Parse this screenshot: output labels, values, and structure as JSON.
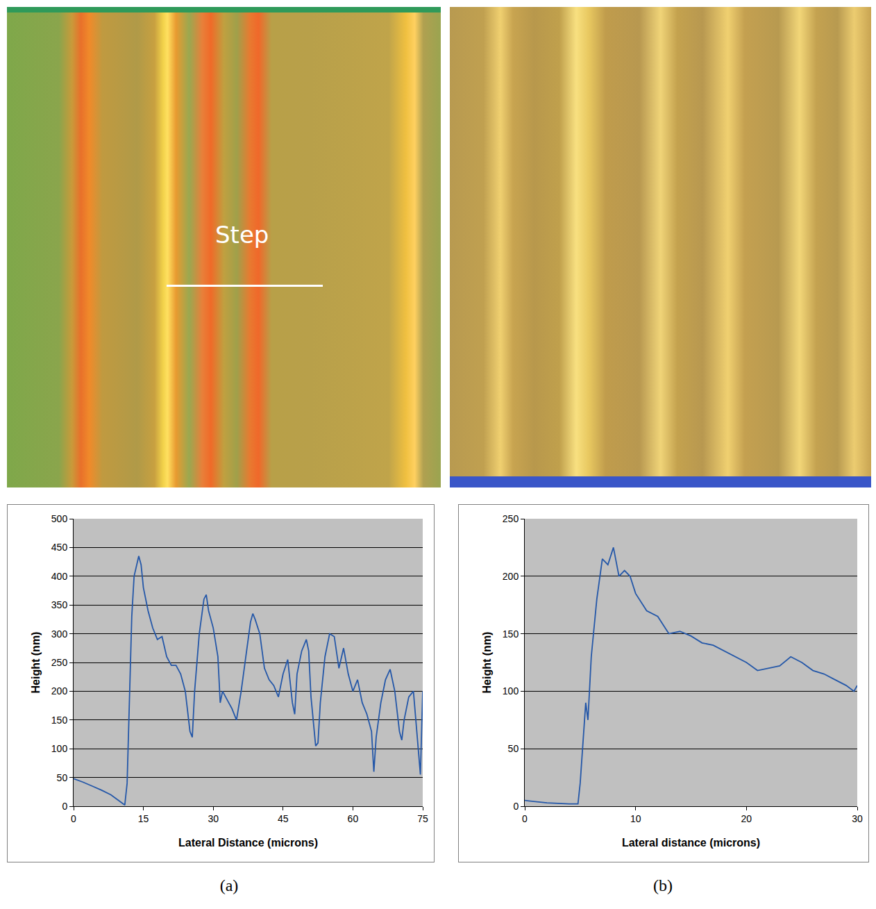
{
  "chart_data": [
    {
      "type": "line",
      "x_label": "Lateral Distance (microns)",
      "y_label": "Height (nm)",
      "x": [
        0,
        2,
        4,
        6,
        8,
        10,
        11,
        11.5,
        12,
        12.5,
        13,
        14,
        14.5,
        15,
        16,
        17,
        18,
        19,
        20,
        21,
        22,
        23,
        24,
        25,
        25.5,
        26,
        27,
        28,
        28.5,
        29,
        30,
        31,
        31.5,
        32,
        33,
        34,
        35,
        36,
        37,
        38,
        38.5,
        39,
        40,
        41,
        42,
        43,
        44,
        45,
        46,
        47,
        47.5,
        48,
        49,
        50,
        50.5,
        51,
        52,
        52.5,
        53,
        54,
        55,
        56,
        57,
        58,
        59,
        60,
        61,
        62,
        63,
        64,
        64.5,
        65,
        66,
        67,
        68,
        69,
        70,
        70.5,
        71,
        72,
        73,
        74,
        74.5,
        75
      ],
      "values": [
        48,
        42,
        35,
        28,
        20,
        8,
        2,
        40,
        200,
        330,
        400,
        435,
        420,
        380,
        340,
        310,
        290,
        295,
        260,
        245,
        245,
        230,
        200,
        130,
        120,
        200,
        300,
        360,
        368,
        340,
        310,
        260,
        180,
        200,
        185,
        170,
        150,
        200,
        260,
        320,
        335,
        325,
        300,
        240,
        220,
        210,
        190,
        230,
        255,
        180,
        160,
        230,
        270,
        290,
        270,
        190,
        105,
        110,
        180,
        260,
        300,
        295,
        240,
        275,
        230,
        200,
        220,
        180,
        160,
        130,
        60,
        120,
        180,
        220,
        238,
        200,
        130,
        115,
        150,
        190,
        200,
        100,
        55,
        200
      ],
      "color": "#2457a8",
      "xlim": [
        0,
        75
      ],
      "xticks": [
        0,
        15,
        30,
        45,
        60,
        75
      ],
      "ylim": [
        0,
        500
      ],
      "yticks": [
        0,
        50,
        100,
        150,
        200,
        250,
        300,
        350,
        400,
        450,
        500
      ],
      "grid": true
    },
    {
      "type": "line",
      "x_label": "Lateral distance (microns)",
      "y_label": "Height (nm)",
      "x": [
        0,
        2,
        4,
        4.8,
        5,
        5.5,
        5.7,
        6,
        6.5,
        7,
        7.5,
        8,
        8.5,
        9,
        9.5,
        10,
        11,
        12,
        13,
        14,
        15,
        16,
        17,
        18,
        19,
        20,
        21,
        22,
        23,
        24,
        25,
        26,
        27,
        28,
        29,
        29.7,
        30
      ],
      "values": [
        5,
        3,
        2,
        2,
        20,
        90,
        75,
        130,
        180,
        215,
        210,
        225,
        200,
        205,
        200,
        185,
        170,
        165,
        150,
        152,
        148,
        142,
        140,
        135,
        130,
        125,
        118,
        120,
        122,
        130,
        125,
        118,
        115,
        110,
        105,
        100,
        105
      ],
      "color": "#2457a8",
      "xlim": [
        0,
        30
      ],
      "xticks": [
        0,
        10,
        20,
        30
      ],
      "ylim": [
        0,
        250
      ],
      "yticks": [
        0,
        50,
        100,
        150,
        200,
        250
      ],
      "grid": true
    }
  ],
  "panel_labels": [
    "(a)",
    "(b)"
  ],
  "image_annotation": "Step"
}
